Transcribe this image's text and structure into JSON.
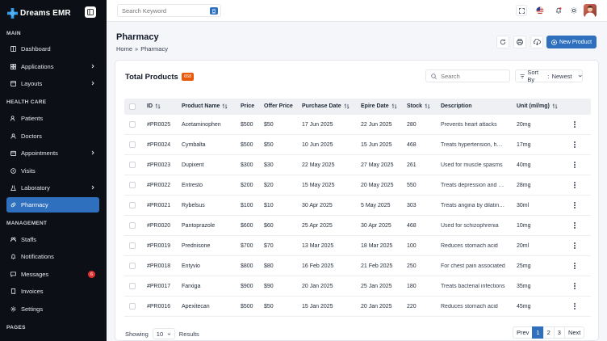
{
  "sidebar": {
    "logo": "Dreams EMR",
    "sections": {
      "main": "MAIN",
      "health": "HEALTH CARE",
      "management": "MANAGEMENT",
      "pages": "PAGES"
    },
    "items": [
      {
        "label": "Dashboard"
      },
      {
        "label": "Applications"
      },
      {
        "label": "Layouts"
      },
      {
        "label": "Patients"
      },
      {
        "label": "Doctors"
      },
      {
        "label": "Appointments"
      },
      {
        "label": "Visits"
      },
      {
        "label": "Laboratory"
      },
      {
        "label": "Pharmacy"
      },
      {
        "label": "Staffs"
      },
      {
        "label": "Notifications"
      },
      {
        "label": "Messages",
        "badge": "6"
      },
      {
        "label": "Invoices"
      },
      {
        "label": "Settings"
      }
    ]
  },
  "topbar": {
    "search_placeholder": "Search Keyword"
  },
  "header": {
    "title": "Pharmacy",
    "breadcrumb_home": "Home",
    "breadcrumb_sep": "»",
    "breadcrumb_current": "Pharmacy",
    "new_button": "New Product"
  },
  "card": {
    "title": "Total Products",
    "count": "658",
    "search_placeholder": "Search",
    "sort_label": "Sort By",
    "sort_sep": ":",
    "sort_value": "Newest"
  },
  "table": {
    "columns": [
      "ID",
      "Product Name",
      "Price",
      "Offer Price",
      "Purchase Date",
      "Epire Date",
      "Stock",
      "Description",
      "Unit (ml/mg)"
    ],
    "rows": [
      {
        "id": "#PR0025",
        "name": "Acetaminophen",
        "price": "$500",
        "offer": "$50",
        "purchase": "17 Jun 2025",
        "expire": "22 Jun 2025",
        "stock": "280",
        "desc": "Prevents heart attacks",
        "unit": "20mg"
      },
      {
        "id": "#PR0024",
        "name": "Cymbalta",
        "price": "$500",
        "offer": "$50",
        "purchase": "10 Jun 2025",
        "expire": "15 Jun 2025",
        "stock": "468",
        "desc": "Treats hypertension, heart failure",
        "unit": "17mg"
      },
      {
        "id": "#PR0023",
        "name": "Dupixent",
        "price": "$300",
        "offer": "$30",
        "purchase": "22 May 2025",
        "expire": "27 May 2025",
        "stock": "261",
        "desc": "Used for muscle spasms",
        "unit": "40mg"
      },
      {
        "id": "#PR0022",
        "name": "Entresto",
        "price": "$200",
        "offer": "$20",
        "purchase": "15 May 2025",
        "expire": "20 May 2025",
        "stock": "550",
        "desc": "Treats depression and anxiety",
        "unit": "28mg"
      },
      {
        "id": "#PR0021",
        "name": "Rybelsus",
        "price": "$100",
        "offer": "$10",
        "purchase": "30 Apr 2025",
        "expire": "5 May 2025",
        "stock": "303",
        "desc": "Treats angina by dilating vessels",
        "unit": "30ml"
      },
      {
        "id": "#PR0020",
        "name": "Pantoprazole",
        "price": "$600",
        "offer": "$60",
        "purchase": "25 Apr 2025",
        "expire": "30 Apr 2025",
        "stock": "468",
        "desc": "Used for schizophrenia",
        "unit": "10mg"
      },
      {
        "id": "#PR0019",
        "name": "Prednisone",
        "price": "$700",
        "offer": "$70",
        "purchase": "13 Mar 2025",
        "expire": "18 Mar 2025",
        "stock": "100",
        "desc": "Reduces stomach acid",
        "unit": "20ml"
      },
      {
        "id": "#PR0018",
        "name": "Entyvio",
        "price": "$800",
        "offer": "$80",
        "purchase": "16 Feb 2025",
        "expire": "21 Feb 2025",
        "stock": "250",
        "desc": "For chest pain associated",
        "unit": "25mg"
      },
      {
        "id": "#PR0017",
        "name": "Farxiga",
        "price": "$900",
        "offer": "$90",
        "purchase": "20 Jan 2025",
        "expire": "25 Jan 2025",
        "stock": "180",
        "desc": "Treats bacterial infections",
        "unit": "35mg"
      },
      {
        "id": "#PR0016",
        "name": "Apexitecan",
        "price": "$500",
        "offer": "$50",
        "purchase": "15 Jan 2025",
        "expire": "20 Jan 2025",
        "stock": "220",
        "desc": "Reduces stomach acid",
        "unit": "45mg"
      }
    ]
  },
  "footer": {
    "showing": "Showing",
    "per_page": "10",
    "results": "Results",
    "prev": "Prev",
    "pages": [
      "1",
      "2",
      "3"
    ],
    "next": "Next"
  },
  "colors": {
    "primary": "#2e6fbe",
    "sidebar_bg": "#0c1016",
    "badge_orange": "#e8590c",
    "badge_red": "#e03131"
  }
}
